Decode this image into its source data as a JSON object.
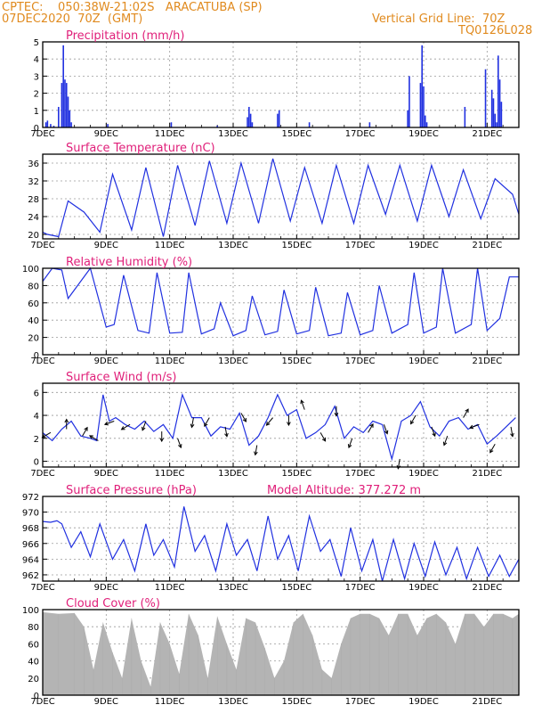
{
  "header": {
    "line1": "CPTEC:    050:38W-21:02S   ARACATUBA (SP)",
    "line2": "07DEC2020  70Z  (GMT)",
    "grid_note": "Vertical Grid Line:  70Z",
    "code": "TQ0126L028"
  },
  "colors": {
    "header": "#e08a1e",
    "title": "#e0207a",
    "series": "#2030e0",
    "cloud": "#b4b4b4",
    "grid": "#9a9a9a"
  },
  "chart_data": [
    {
      "type": "bar",
      "title": "Precipitation  (mm/h)",
      "ylim": [
        0,
        5
      ],
      "yticks": [
        "0",
        "1",
        "2",
        "3",
        "4",
        "5"
      ],
      "xlim": [
        0,
        15
      ],
      "xticks": [
        "7DEC",
        "9DEC",
        "11DEC",
        "13DEC",
        "15DEC",
        "17DEC",
        "19DEC",
        "21DEC"
      ],
      "x": [
        0.1,
        0.15,
        0.25,
        0.35,
        0.5,
        0.6,
        0.65,
        0.7,
        0.75,
        0.8,
        0.85,
        0.9,
        2.05,
        4.05,
        5.5,
        6.45,
        6.5,
        6.55,
        6.6,
        7.4,
        7.45,
        8.4,
        10.3,
        11.5,
        11.55,
        11.9,
        11.95,
        12.0,
        12.05,
        12.1,
        13.3,
        13.95,
        14.15,
        14.2,
        14.25,
        14.3,
        14.35,
        14.4,
        14.45
      ],
      "values": [
        0.3,
        0.4,
        0.2,
        0.1,
        1.2,
        2.6,
        4.8,
        2.8,
        2.6,
        1.8,
        1.0,
        0.3,
        0.2,
        0.3,
        0.1,
        0.6,
        1.2,
        0.8,
        0.3,
        0.8,
        1.0,
        0.3,
        0.3,
        1.0,
        3.0,
        2.6,
        4.8,
        2.4,
        0.7,
        0.3,
        1.2,
        3.4,
        2.2,
        1.7,
        0.8,
        0.3,
        4.2,
        2.8,
        1.5
      ]
    },
    {
      "type": "line",
      "title": "Surface Temperature  (nC)",
      "ylim": [
        19,
        38
      ],
      "yticks": [
        "20",
        "24",
        "28",
        "32",
        "36"
      ],
      "xlim": [
        0,
        15
      ],
      "xticks": [
        "7DEC",
        "9DEC",
        "11DEC",
        "13DEC",
        "15DEC",
        "17DEC",
        "19DEC",
        "21DEC"
      ],
      "x": [
        0,
        0.15,
        0.5,
        0.8,
        1.3,
        1.8,
        2.2,
        2.8,
        3.25,
        3.8,
        4.25,
        4.8,
        5.25,
        5.8,
        6.25,
        6.8,
        7.25,
        7.8,
        8.25,
        8.8,
        9.25,
        9.8,
        10.25,
        10.8,
        11.25,
        11.8,
        12.25,
        12.8,
        13.25,
        13.8,
        14.25,
        14.8,
        15.0
      ],
      "values": [
        20.5,
        20,
        19.5,
        27.5,
        25,
        20.5,
        33.5,
        21,
        35,
        19.5,
        35.5,
        22,
        36.5,
        22.5,
        36,
        22.5,
        37,
        23,
        35,
        22.5,
        35.5,
        22.5,
        35.5,
        24.5,
        35.5,
        23,
        35.5,
        24,
        34.5,
        23.5,
        32.5,
        29,
        24.5
      ]
    },
    {
      "type": "line",
      "title": "Relative Humidity  (%)",
      "ylim": [
        0,
        100
      ],
      "yticks": [
        "0",
        "20",
        "40",
        "60",
        "80",
        "100"
      ],
      "xlim": [
        0,
        15
      ],
      "xticks": [
        "7DEC",
        "9DEC",
        "11DEC",
        "13DEC",
        "15DEC",
        "17DEC",
        "19DEC",
        "21DEC"
      ],
      "x": [
        0,
        0.3,
        0.6,
        0.8,
        1.1,
        1.5,
        2.0,
        2.25,
        2.55,
        3.0,
        3.35,
        3.6,
        4.0,
        4.4,
        4.6,
        5.0,
        5.4,
        5.6,
        6.0,
        6.4,
        6.6,
        7.0,
        7.4,
        7.6,
        8.0,
        8.4,
        8.6,
        9.0,
        9.4,
        9.6,
        10.0,
        10.4,
        10.6,
        11.0,
        11.5,
        11.7,
        12.0,
        12.4,
        12.6,
        13.0,
        13.5,
        13.7,
        14.0,
        14.4,
        14.7,
        15.0
      ],
      "values": [
        85,
        100,
        98,
        65,
        80,
        100,
        32,
        35,
        92,
        28,
        25,
        95,
        25,
        26,
        95,
        24,
        30,
        60,
        22,
        28,
        68,
        23,
        27,
        75,
        24,
        28,
        78,
        22,
        25,
        72,
        23,
        28,
        80,
        25,
        35,
        95,
        25,
        32,
        100,
        25,
        35,
        100,
        28,
        42,
        90,
        90
      ]
    },
    {
      "type": "line",
      "title": "Surface Wind  (m/s)",
      "ylim": [
        -0.5,
        6.8
      ],
      "yticks": [
        "0",
        "2",
        "4",
        "6"
      ],
      "xlim": [
        0,
        15
      ],
      "xticks": [
        "7DEC",
        "9DEC",
        "11DEC",
        "13DEC",
        "15DEC",
        "17DEC",
        "19DEC",
        "21DEC"
      ],
      "x": [
        0,
        0.3,
        0.6,
        0.9,
        1.2,
        1.5,
        1.7,
        1.9,
        2.1,
        2.3,
        2.6,
        2.9,
        3.2,
        3.5,
        3.8,
        4.1,
        4.4,
        4.7,
        5.0,
        5.3,
        5.6,
        5.9,
        6.2,
        6.5,
        6.8,
        7.1,
        7.4,
        7.7,
        8.0,
        8.3,
        8.6,
        8.9,
        9.2,
        9.5,
        9.8,
        10.1,
        10.4,
        10.7,
        11.0,
        11.3,
        11.6,
        11.9,
        12.2,
        12.5,
        12.8,
        13.1,
        13.4,
        13.7,
        14.0,
        14.3,
        14.6,
        14.9
      ],
      "values": [
        2.5,
        1.8,
        2.8,
        3.5,
        2.2,
        2.0,
        1.8,
        5.8,
        3.5,
        3.8,
        3.2,
        2.8,
        3.5,
        2.6,
        3.2,
        2.0,
        5.8,
        3.8,
        3.8,
        2.2,
        3.0,
        2.8,
        4.2,
        1.4,
        2.2,
        3.8,
        5.8,
        4.0,
        4.5,
        2.0,
        2.5,
        3.2,
        4.8,
        2.0,
        3.0,
        2.5,
        3.5,
        3.2,
        0.2,
        3.5,
        4.0,
        5.2,
        3.0,
        2.2,
        3.5,
        3.8,
        2.8,
        3.2,
        1.5,
        2.2,
        3.0,
        3.8
      ],
      "arrow_dirs": [
        210,
        90,
        60,
        150,
        200,
        210,
        250,
        270,
        290,
        260,
        240,
        280,
        300,
        260,
        230,
        270,
        110,
        300,
        270,
        250,
        60,
        290,
        260,
        240,
        290,
        250,
        60,
        200,
        240,
        280
      ]
    },
    {
      "type": "line",
      "title": "Surface Pressure  (hPa)",
      "annotation": "Model Altitude:  377.272  m",
      "ylim": [
        961.2,
        972
      ],
      "yticks": [
        "962",
        "964",
        "966",
        "968",
        "970",
        "972"
      ],
      "xlim": [
        0,
        15
      ],
      "xticks": [
        "7DEC",
        "9DEC",
        "11DEC",
        "13DEC",
        "15DEC",
        "17DEC",
        "19DEC",
        "21DEC"
      ],
      "x": [
        0,
        0.25,
        0.45,
        0.6,
        0.9,
        1.2,
        1.5,
        1.8,
        2.2,
        2.55,
        2.9,
        3.25,
        3.5,
        3.8,
        4.15,
        4.45,
        4.8,
        5.1,
        5.45,
        5.8,
        6.1,
        6.45,
        6.75,
        7.1,
        7.4,
        7.75,
        8.05,
        8.4,
        8.75,
        9.05,
        9.4,
        9.7,
        10.05,
        10.4,
        10.7,
        11.05,
        11.4,
        11.7,
        12.05,
        12.35,
        12.7,
        13.05,
        13.35,
        13.7,
        14.05,
        14.4,
        14.7,
        15.0
      ],
      "values": [
        968.8,
        968.7,
        968.9,
        968.5,
        965.5,
        967.5,
        964.3,
        968.5,
        964,
        966.5,
        962.5,
        968.5,
        964.5,
        966.5,
        963,
        970.7,
        965,
        967,
        962.5,
        968.5,
        964.5,
        966.5,
        962.5,
        969.5,
        964,
        967,
        962.5,
        969.5,
        965,
        966.5,
        961.8,
        968,
        962.5,
        966.5,
        961.2,
        966.5,
        961.5,
        966,
        961.8,
        966.2,
        962,
        965.5,
        961.5,
        965.5,
        961.8,
        964.5,
        961.8,
        964
      ]
    },
    {
      "type": "area",
      "title": "Cloud Cover  (%)",
      "ylim": [
        0,
        100
      ],
      "yticks": [
        "0",
        "20",
        "40",
        "60",
        "80",
        "100"
      ],
      "xlim": [
        0,
        15
      ],
      "xticks": [
        "7DEC",
        "9DEC",
        "11DEC",
        "13DEC",
        "15DEC",
        "17DEC",
        "19DEC",
        "21DEC"
      ],
      "x": [
        0,
        0.5,
        1.0,
        1.3,
        1.6,
        1.9,
        2.2,
        2.5,
        2.8,
        3.1,
        3.4,
        3.7,
        4.0,
        4.3,
        4.6,
        4.9,
        5.2,
        5.5,
        5.8,
        6.1,
        6.4,
        6.7,
        7.0,
        7.3,
        7.6,
        7.9,
        8.2,
        8.5,
        8.8,
        9.1,
        9.4,
        9.7,
        10.0,
        10.3,
        10.6,
        10.9,
        11.2,
        11.5,
        11.8,
        12.1,
        12.4,
        12.7,
        13.0,
        13.3,
        13.6,
        13.9,
        14.2,
        14.5,
        14.8,
        15.0
      ],
      "values": [
        97,
        95,
        96,
        80,
        30,
        85,
        50,
        20,
        90,
        40,
        10,
        85,
        60,
        25,
        95,
        70,
        20,
        92,
        60,
        30,
        90,
        85,
        55,
        20,
        40,
        85,
        95,
        70,
        30,
        20,
        60,
        90,
        95,
        95,
        90,
        70,
        95,
        95,
        70,
        90,
        95,
        85,
        60,
        95,
        95,
        80,
        95,
        95,
        90,
        95
      ]
    }
  ]
}
